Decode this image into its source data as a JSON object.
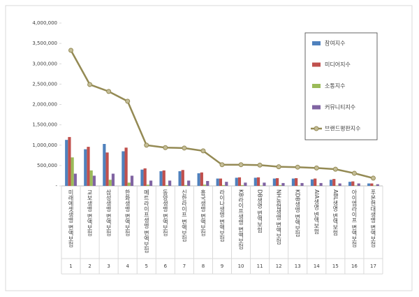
{
  "chart_data": {
    "type": "bar",
    "categories": [
      "미래에셋생명 변액보험",
      "교보생명 변액보험",
      "삼성생명 변액보험",
      "한화생명 변액보험",
      "메트라이프생명 변액보험",
      "동양생명 변액보험",
      "신한라이프 변액보험",
      "흥국생명 변액보험",
      "라이나생명 변액보험",
      "KB라이프생명 변액보험",
      "DB생명 변액보험",
      "NH농협생명 변액보험",
      "KDB생명 변액보험",
      "AIA생명 변액보험",
      "ABL생명 변액보험",
      "아이엠라이프 변액보험",
      "푸본현대생명 변액보험"
    ],
    "category_numbers": [
      "1",
      "2",
      "3",
      "4",
      "5",
      "6",
      "7",
      "8",
      "9",
      "10",
      "11",
      "12",
      "13",
      "14",
      "15",
      "16",
      "17"
    ],
    "series": [
      {
        "name": "참여지수",
        "color": "#4f81bd",
        "type": "bar",
        "values": [
          1130000,
          900000,
          1030000,
          850000,
          400000,
          360000,
          360000,
          310000,
          180000,
          200000,
          200000,
          180000,
          180000,
          160000,
          150000,
          100000,
          60000
        ]
      },
      {
        "name": "미디어지수",
        "color": "#c0504d",
        "type": "bar",
        "values": [
          1200000,
          960000,
          820000,
          940000,
          430000,
          380000,
          390000,
          330000,
          180000,
          210000,
          210000,
          190000,
          190000,
          180000,
          170000,
          110000,
          60000
        ]
      },
      {
        "name": "소통지수",
        "color": "#9bbb59",
        "type": "bar",
        "values": [
          700000,
          380000,
          150000,
          80000,
          30000,
          20000,
          20000,
          30000,
          20000,
          20000,
          10000,
          20000,
          10000,
          10000,
          10000,
          10000,
          10000
        ]
      },
      {
        "name": "커뮤니티지수",
        "color": "#8064a2",
        "type": "bar",
        "values": [
          300000,
          250000,
          300000,
          250000,
          130000,
          130000,
          130000,
          120000,
          100000,
          80000,
          80000,
          70000,
          70000,
          70000,
          60000,
          60000,
          40000
        ]
      },
      {
        "name": "브랜드평판지수",
        "color": "#948a54",
        "type": "line",
        "values": [
          3330000,
          2490000,
          2320000,
          2080000,
          1000000,
          940000,
          930000,
          860000,
          520000,
          520000,
          510000,
          470000,
          460000,
          440000,
          410000,
          310000,
          190000
        ]
      }
    ],
    "ylim": [
      0,
      4000000
    ],
    "yticks": [
      {
        "value": 0,
        "label": "-"
      },
      {
        "value": 500000,
        "label": "500,000"
      },
      {
        "value": 1000000,
        "label": "1,000,000"
      },
      {
        "value": 1500000,
        "label": "1,500,000"
      },
      {
        "value": 2000000,
        "label": "2,000,000"
      },
      {
        "value": 2500000,
        "label": "2,500,000"
      },
      {
        "value": 3000000,
        "label": "3,000,000"
      },
      {
        "value": 3500000,
        "label": "3,500,000"
      },
      {
        "value": 4000000,
        "label": "4,000,000"
      }
    ],
    "legend": "top-right"
  }
}
